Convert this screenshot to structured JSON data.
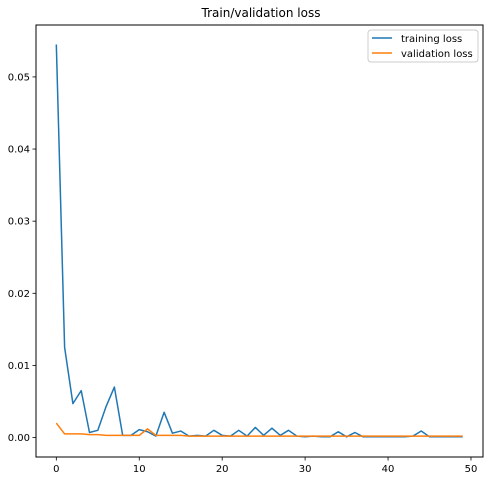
{
  "chart_data": {
    "type": "line",
    "title": "Train/validation loss",
    "xlabel": "",
    "ylabel": "",
    "xlim": [
      -2.45,
      51.45
    ],
    "ylim": [
      -0.0027,
      0.0572
    ],
    "x_ticks": [
      0,
      10,
      20,
      30,
      40,
      50
    ],
    "y_ticks": [
      0.0,
      0.01,
      0.02,
      0.03,
      0.04,
      0.05
    ],
    "x_tick_labels": [
      "0",
      "10",
      "20",
      "30",
      "40",
      "50"
    ],
    "y_tick_labels": [
      "0.00",
      "0.01",
      "0.02",
      "0.03",
      "0.04",
      "0.05"
    ],
    "grid": false,
    "legend_position": "top-right",
    "x": [
      0,
      1,
      2,
      3,
      4,
      5,
      6,
      7,
      8,
      9,
      10,
      11,
      12,
      13,
      14,
      15,
      16,
      17,
      18,
      19,
      20,
      21,
      22,
      23,
      24,
      25,
      26,
      27,
      28,
      29,
      30,
      31,
      32,
      33,
      34,
      35,
      36,
      37,
      38,
      39,
      40,
      41,
      42,
      43,
      44,
      45,
      46,
      47,
      48,
      49
    ],
    "series": [
      {
        "name": "training loss",
        "color": "#1f77b4",
        "values": [
          0.0545,
          0.0125,
          0.0047,
          0.0065,
          0.0007,
          0.001,
          0.0043,
          0.007,
          0.0003,
          0.0003,
          0.0011,
          0.0008,
          0.0002,
          0.0035,
          0.0006,
          0.0009,
          0.0002,
          0.0003,
          0.0002,
          0.001,
          0.0003,
          0.0002,
          0.001,
          0.0002,
          0.0014,
          0.0003,
          0.0013,
          0.0003,
          0.001,
          0.0002,
          0.0001,
          0.0002,
          0.0001,
          0.0001,
          0.0008,
          0.0001,
          0.0007,
          0.0001,
          0.0001,
          0.0001,
          0.0001,
          0.0001,
          0.0001,
          0.0002,
          0.0009,
          0.0001,
          0.0001,
          0.0001,
          0.0001,
          0.0001
        ]
      },
      {
        "name": "validation loss",
        "color": "#ff7f0e",
        "values": [
          0.002,
          0.0005,
          0.0005,
          0.0005,
          0.0004,
          0.0004,
          0.0003,
          0.0003,
          0.0003,
          0.0003,
          0.0003,
          0.0012,
          0.0003,
          0.0003,
          0.0003,
          0.0003,
          0.0002,
          0.0002,
          0.0002,
          0.0002,
          0.0002,
          0.0002,
          0.0002,
          0.0002,
          0.0002,
          0.0002,
          0.0002,
          0.0002,
          0.0002,
          0.0002,
          0.0002,
          0.0002,
          0.0002,
          0.0002,
          0.0002,
          0.0002,
          0.0002,
          0.0002,
          0.0002,
          0.0002,
          0.0002,
          0.0002,
          0.0002,
          0.0002,
          0.0002,
          0.0002,
          0.0002,
          0.0002,
          0.0002,
          0.0002
        ]
      }
    ]
  }
}
